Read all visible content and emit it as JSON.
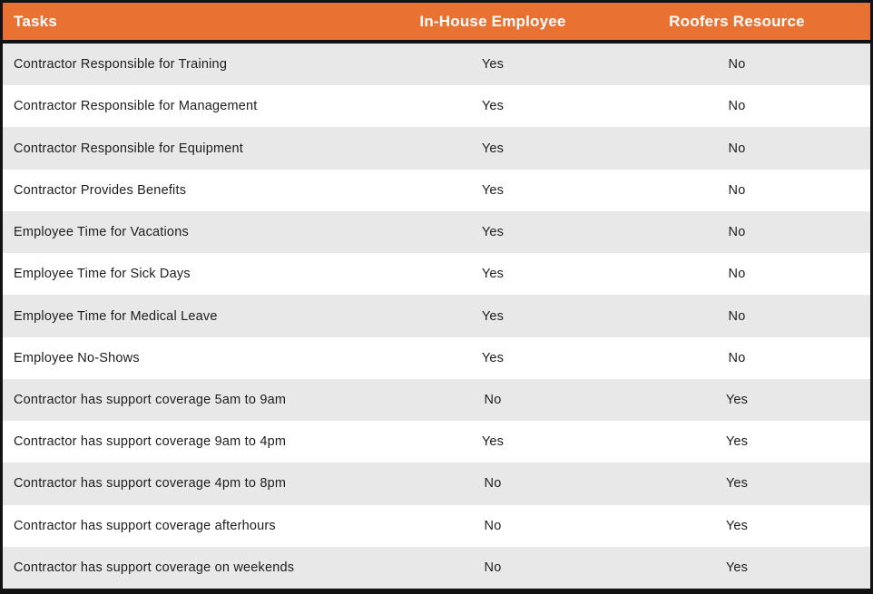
{
  "table": {
    "columns": [
      "Tasks",
      "In-House Employee",
      "Roofers Resource"
    ],
    "rows": [
      {
        "task": "Contractor Responsible for Training",
        "in_house": "Yes",
        "roofers": "No"
      },
      {
        "task": "Contractor Responsible for Management",
        "in_house": "Yes",
        "roofers": "No"
      },
      {
        "task": "Contractor Responsible for Equipment",
        "in_house": "Yes",
        "roofers": "No"
      },
      {
        "task": "Contractor Provides Benefits",
        "in_house": "Yes",
        "roofers": "No"
      },
      {
        "task": "Employee Time for Vacations",
        "in_house": "Yes",
        "roofers": "No"
      },
      {
        "task": "Employee Time for Sick Days",
        "in_house": "Yes",
        "roofers": "No"
      },
      {
        "task": "Employee Time for Medical Leave",
        "in_house": "Yes",
        "roofers": "No"
      },
      {
        "task": "Employee No-Shows",
        "in_house": "Yes",
        "roofers": "No"
      },
      {
        "task": "Contractor has support coverage 5am to 9am",
        "in_house": "No",
        "roofers": "Yes"
      },
      {
        "task": "Contractor has support coverage 9am to 4pm",
        "in_house": "Yes",
        "roofers": "Yes"
      },
      {
        "task": "Contractor has support coverage 4pm to 8pm",
        "in_house": "No",
        "roofers": "Yes"
      },
      {
        "task": "Contractor has support coverage afterhours",
        "in_house": "No",
        "roofers": "Yes"
      },
      {
        "task": "Contractor has support coverage on weekends",
        "in_house": "No",
        "roofers": "Yes"
      }
    ],
    "colors": {
      "header_bg": "#E97132",
      "header_text": "#FFFFFF",
      "row_alt_bg": "#E8E8E8",
      "row_bg": "#FFFFFF",
      "border": "#121212",
      "text": "#1D1D1D"
    }
  }
}
